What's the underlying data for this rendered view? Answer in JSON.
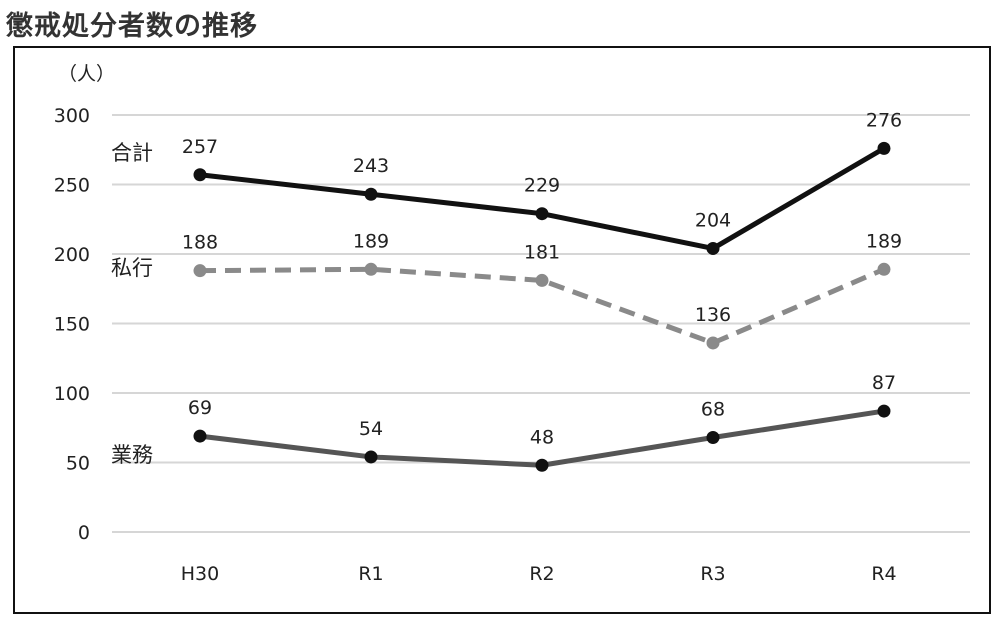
{
  "title": "懲戒処分者数の推移",
  "chart_data": {
    "type": "line",
    "title": "懲戒処分者数の推移",
    "unit_label": "（人）",
    "categories": [
      "H30",
      "R1",
      "R2",
      "R3",
      "R4"
    ],
    "ylim": [
      0,
      300
    ],
    "yticks": [
      0,
      50,
      100,
      150,
      200,
      250,
      300
    ],
    "grid": true,
    "series": [
      {
        "name": "合計",
        "values": [
          257,
          243,
          229,
          204,
          276
        ],
        "color": "#111111",
        "dash": "solid",
        "marker_color": "#111111"
      },
      {
        "name": "私行",
        "values": [
          188,
          189,
          181,
          136,
          189
        ],
        "color": "#8a8a8a",
        "dash": "dashed",
        "marker_color": "#8a8a8a"
      },
      {
        "name": "業務",
        "values": [
          69,
          54,
          48,
          68,
          87
        ],
        "color": "#555555",
        "dash": "solid",
        "marker_color": "#111111"
      }
    ]
  }
}
